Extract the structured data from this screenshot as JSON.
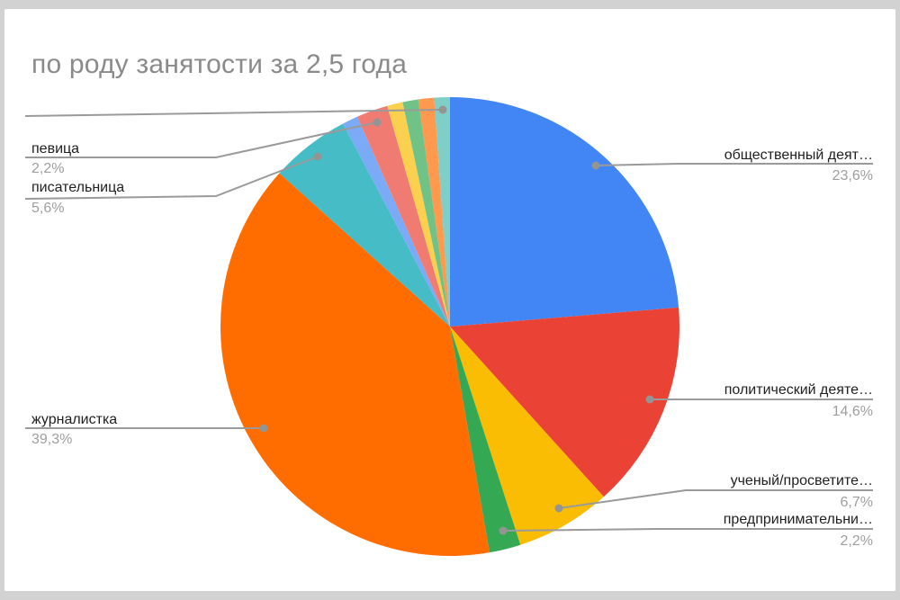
{
  "window": {
    "frame_background": "#d2d2d2",
    "card_background": "#ffffff"
  },
  "title": "по роду занятости за 2,5 года",
  "chart_data": {
    "type": "pie",
    "title": "по роду занятости за 2,5 года",
    "start": "12-oclock",
    "direction": "clockwise",
    "legend_position": "outside-callout-labels",
    "value_format": "percent-comma-decimal",
    "slices": [
      {
        "label": "общественный деят…",
        "pct_label": "23,6%",
        "value": 23.6,
        "color": "#4285F4",
        "callout": "right"
      },
      {
        "label": "политический деяте…",
        "pct_label": "14,6%",
        "value": 14.6,
        "color": "#EA4335",
        "callout": "right"
      },
      {
        "label": "ученый/просветите…",
        "pct_label": "6,7%",
        "value": 6.7,
        "color": "#FBBC04",
        "callout": "right"
      },
      {
        "label": "предпринимательни…",
        "pct_label": "2,2%",
        "value": 2.2,
        "color": "#34A853",
        "callout": "right"
      },
      {
        "label": "журналистка",
        "pct_label": "39,3%",
        "value": 39.3,
        "color": "#FF6D01",
        "callout": "left"
      },
      {
        "label": "писательница",
        "pct_label": "5,6%",
        "value": 5.6,
        "color": "#46BDC6",
        "callout": "left"
      },
      {
        "label": "",
        "pct_label": "",
        "value": 1.1,
        "color": "#7BAAF7",
        "callout": "none"
      },
      {
        "label": "певица",
        "pct_label": "2,2%",
        "value": 2.2,
        "color": "#F07B72",
        "callout": "left"
      },
      {
        "label": "",
        "pct_label": "",
        "value": 1.1,
        "color": "#FCD04F",
        "callout": "none"
      },
      {
        "label": "",
        "pct_label": "",
        "value": 1.1,
        "color": "#71C287",
        "callout": "none"
      },
      {
        "label": "",
        "pct_label": "",
        "value": 1.1,
        "color": "#FF994D",
        "callout": "none"
      },
      {
        "label": "",
        "pct_label": "",
        "value": 1.1,
        "color": "#80CEC8",
        "callout": "none"
      }
    ],
    "styles": {
      "title_color": "#8a8a8a",
      "label_color": "#1f1f1f",
      "value_color": "#9e9e9e",
      "leader_line_color": "#9a9a9a"
    }
  }
}
